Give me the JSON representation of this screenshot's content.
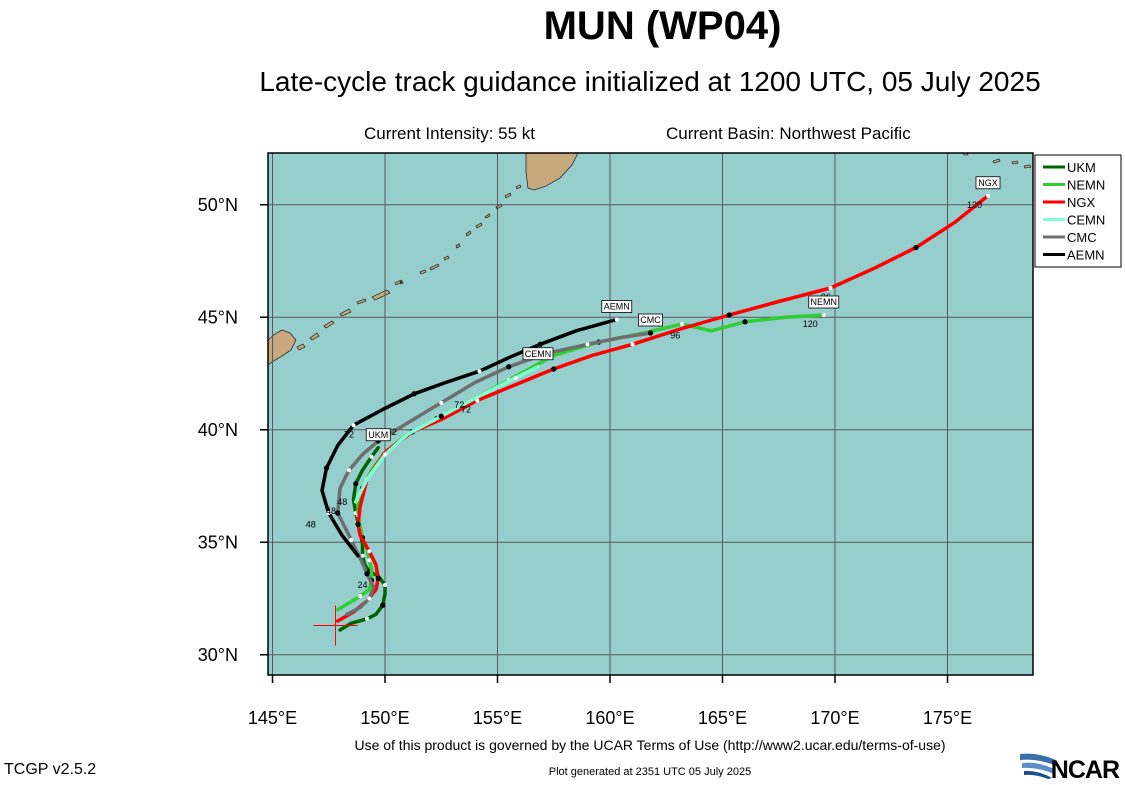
{
  "header": {
    "title": "MUN (WP04)",
    "subtitle": "Late-cycle track guidance initialized at 1200 UTC, 05 July 2025",
    "current_intensity": "Current Intensity: 55 kt",
    "current_basin": "Current Basin: Northwest Pacific"
  },
  "footer": {
    "terms": "Use of this product is governed by the UCAR Terms of Use (http://www2.ucar.edu/terms-of-use)",
    "version": "TCGP v2.5.2",
    "generated": "Plot generated at 2351 UTC   05 July 2025",
    "logo_text": "NCAR"
  },
  "colors": {
    "ocean": "#96cdcd",
    "land": "#c8a97e",
    "grid": "#595959"
  },
  "chart_data": {
    "type": "line",
    "projection": "map",
    "x_axis": {
      "range": [
        144.8,
        178.8
      ],
      "ticks": [
        145,
        150,
        155,
        160,
        165,
        170,
        175
      ],
      "tick_labels": [
        "145°E",
        "150°E",
        "155°E",
        "160°E",
        "165°E",
        "170°E",
        "175°E"
      ]
    },
    "y_axis": {
      "range": [
        29.1,
        52.3
      ],
      "ticks": [
        30,
        35,
        40,
        45,
        50
      ],
      "tick_labels": [
        "30°N",
        "35°N",
        "40°N",
        "45°N",
        "50°N"
      ]
    },
    "grid": true,
    "legend_position": "top-right",
    "initial_position": {
      "lon": 147.8,
      "lat": 31.3
    },
    "series": [
      {
        "name": "UKM",
        "color": "#006400",
        "end_label": "UKM",
        "points": [
          [
            148.0,
            31.1
          ],
          [
            148.5,
            31.4
          ],
          [
            149.2,
            31.6
          ],
          [
            149.6,
            31.8
          ],
          [
            149.9,
            32.2
          ],
          [
            150.0,
            32.7
          ],
          [
            150.0,
            33.1
          ],
          [
            149.7,
            33.5
          ],
          [
            149.3,
            33.7
          ],
          [
            149.1,
            34.0
          ],
          [
            149.0,
            34.4
          ],
          [
            149.0,
            34.9
          ],
          [
            148.9,
            35.5
          ],
          [
            148.8,
            35.9
          ],
          [
            148.7,
            36.3
          ],
          [
            148.6,
            36.9
          ],
          [
            148.7,
            37.6
          ],
          [
            149.0,
            38.2
          ],
          [
            149.4,
            38.8
          ],
          [
            149.7,
            39.2
          ]
        ],
        "labels": [
          {
            "text": "24",
            "lon": 149.0,
            "lat": 33.1
          },
          {
            "text": "48",
            "lon": 148.1,
            "lat": 36.8
          }
        ]
      },
      {
        "name": "NEMN",
        "color": "#32cd32",
        "end_label": "NEMN",
        "points": [
          [
            147.9,
            32.0
          ],
          [
            148.4,
            32.3
          ],
          [
            148.9,
            32.6
          ],
          [
            149.3,
            32.9
          ],
          [
            149.4,
            33.3
          ],
          [
            149.4,
            33.8
          ],
          [
            149.3,
            34.2
          ],
          [
            149.2,
            34.7
          ],
          [
            149.0,
            35.2
          ],
          [
            148.9,
            35.7
          ],
          [
            148.8,
            36.2
          ],
          [
            148.8,
            36.7
          ],
          [
            149.0,
            37.4
          ],
          [
            149.4,
            38.2
          ],
          [
            150.0,
            39.0
          ],
          [
            151.0,
            39.8
          ],
          [
            152.3,
            40.5
          ],
          [
            153.8,
            41.3
          ],
          [
            155.5,
            42.2
          ],
          [
            157.5,
            43.3
          ],
          [
            159.5,
            43.9
          ],
          [
            161.5,
            44.3
          ],
          [
            163.2,
            44.7
          ],
          [
            164.5,
            44.4
          ],
          [
            166.0,
            44.8
          ],
          [
            167.8,
            45.0
          ],
          [
            169.5,
            45.1
          ]
        ],
        "labels": [
          {
            "text": "72",
            "lon": 153.3,
            "lat": 41.1
          },
          {
            "text": "96",
            "lon": 162.9,
            "lat": 44.2
          },
          {
            "text": "120",
            "lon": 168.9,
            "lat": 44.7
          }
        ]
      },
      {
        "name": "NGX",
        "color": "#ff0000",
        "end_label": "NGX",
        "points": [
          [
            147.9,
            31.5
          ],
          [
            148.6,
            31.9
          ],
          [
            149.2,
            32.4
          ],
          [
            149.6,
            32.9
          ],
          [
            149.7,
            33.4
          ],
          [
            149.6,
            34.0
          ],
          [
            149.3,
            34.6
          ],
          [
            148.9,
            35.3
          ],
          [
            148.8,
            35.8
          ],
          [
            148.9,
            36.6
          ],
          [
            149.2,
            37.8
          ],
          [
            150.0,
            39.0
          ],
          [
            151.2,
            39.9
          ],
          [
            152.6,
            40.5
          ],
          [
            154.1,
            41.3
          ],
          [
            155.8,
            42.0
          ],
          [
            157.5,
            42.7
          ],
          [
            159.2,
            43.3
          ],
          [
            161.0,
            43.8
          ],
          [
            163.2,
            44.5
          ],
          [
            165.3,
            45.1
          ],
          [
            167.5,
            45.7
          ],
          [
            169.8,
            46.3
          ],
          [
            171.8,
            47.2
          ],
          [
            173.6,
            48.1
          ],
          [
            175.3,
            49.2
          ],
          [
            176.8,
            50.4
          ]
        ],
        "labels": [
          {
            "text": "72",
            "lon": 153.6,
            "lat": 40.9
          },
          {
            "text": "96",
            "lon": 169.6,
            "lat": 45.9
          },
          {
            "text": "120",
            "lon": 176.2,
            "lat": 50.0
          }
        ]
      },
      {
        "name": "CEMN",
        "color": "#7fffd4",
        "end_label": "CEMN",
        "points": [
          [
            148.7,
            36.8
          ],
          [
            149.2,
            37.8
          ],
          [
            150.0,
            38.9
          ],
          [
            151.0,
            39.8
          ],
          [
            152.5,
            40.6
          ],
          [
            154.2,
            41.5
          ],
          [
            155.8,
            42.3
          ],
          [
            156.8,
            42.8
          ]
        ],
        "labels": []
      },
      {
        "name": "CMC",
        "color": "#6e6e6e",
        "end_label": "CMC",
        "points": [
          [
            148.3,
            31.8
          ],
          [
            148.9,
            32.1
          ],
          [
            149.3,
            32.5
          ],
          [
            149.5,
            33.0
          ],
          [
            149.2,
            33.6
          ],
          [
            148.9,
            34.3
          ],
          [
            148.5,
            35.1
          ],
          [
            148.2,
            35.7
          ],
          [
            147.9,
            36.3
          ],
          [
            148.0,
            37.4
          ],
          [
            148.4,
            38.2
          ],
          [
            149.0,
            38.9
          ],
          [
            149.7,
            39.5
          ],
          [
            151.0,
            40.3
          ],
          [
            152.5,
            41.2
          ],
          [
            154.0,
            42.1
          ],
          [
            155.5,
            42.8
          ],
          [
            157.2,
            43.4
          ],
          [
            159.0,
            43.8
          ],
          [
            160.5,
            44.1
          ],
          [
            161.8,
            44.3
          ]
        ],
        "labels": [
          {
            "text": "48",
            "lon": 147.6,
            "lat": 36.4
          },
          {
            "text": "72",
            "lon": 150.3,
            "lat": 39.9
          }
        ]
      },
      {
        "name": "AEMN",
        "color": "#000000",
        "end_label": "AEMN",
        "points": [
          [
            148.8,
            34.4
          ],
          [
            148.1,
            35.3
          ],
          [
            147.5,
            36.3
          ],
          [
            147.2,
            37.3
          ],
          [
            147.4,
            38.3
          ],
          [
            147.9,
            39.3
          ],
          [
            148.6,
            40.2
          ],
          [
            149.9,
            40.9
          ],
          [
            151.3,
            41.6
          ],
          [
            152.7,
            42.1
          ],
          [
            154.2,
            42.6
          ],
          [
            155.5,
            43.2
          ],
          [
            156.9,
            43.8
          ],
          [
            158.5,
            44.4
          ],
          [
            160.3,
            44.9
          ]
        ],
        "labels": [
          {
            "text": "48",
            "lon": 146.7,
            "lat": 35.8
          },
          {
            "text": "72",
            "lon": 148.4,
            "lat": 39.8
          },
          {
            "text": "96",
            "lon": 156.3,
            "lat": 43.5
          }
        ]
      }
    ]
  }
}
